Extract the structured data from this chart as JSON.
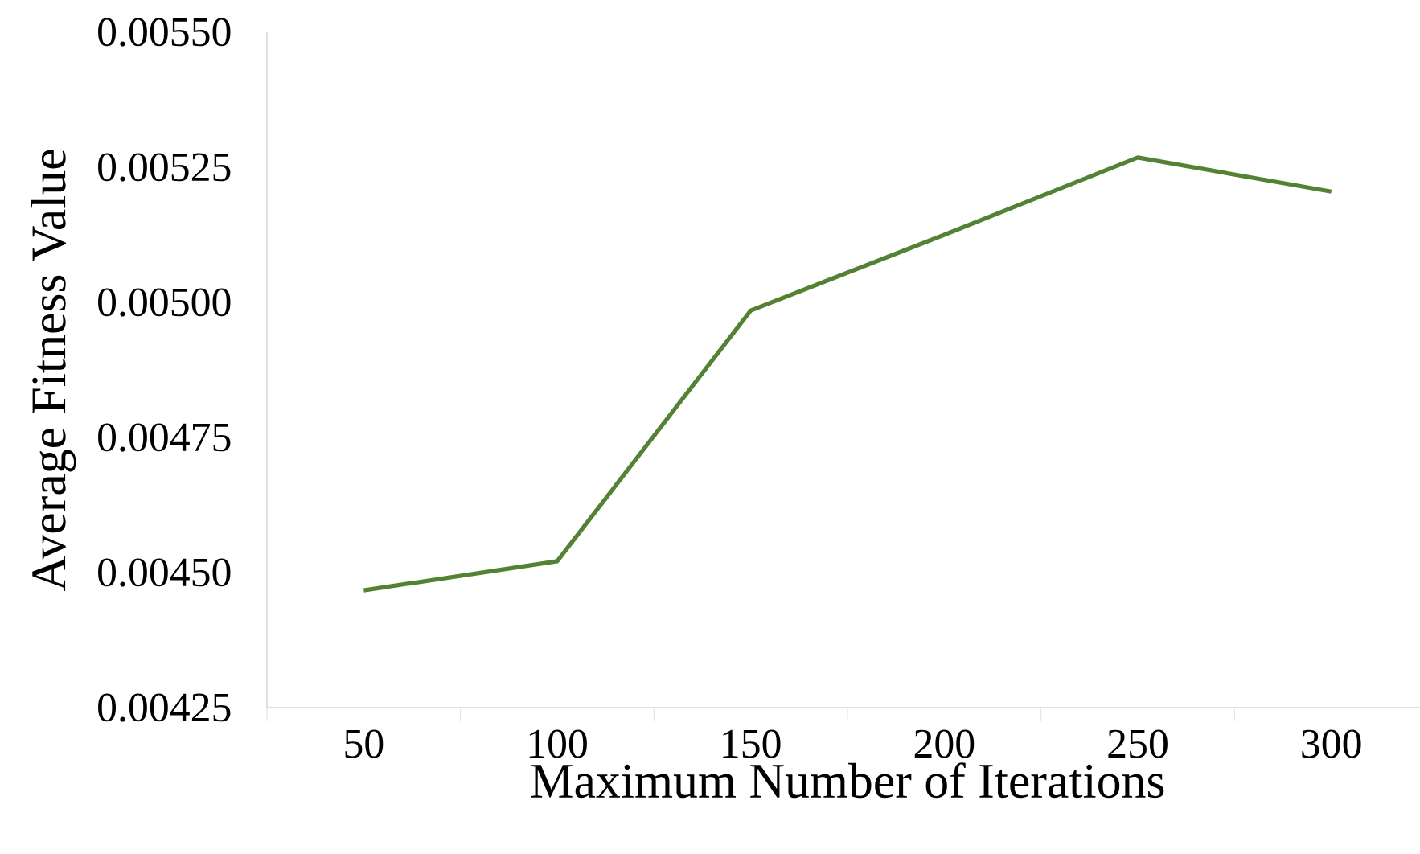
{
  "chart_data": {
    "type": "line",
    "xlabel": "Maximum Number of Iterations",
    "ylabel": "Average Fitness Value",
    "categories": [
      "50",
      "100",
      "150",
      "200",
      "250",
      "300"
    ],
    "values": [
      0.004467,
      0.004521,
      0.004985,
      0.005125,
      0.005268,
      0.005205
    ],
    "color": "#548235",
    "ylim": [
      0.00425,
      0.0055
    ],
    "yticks": [
      {
        "value": 0.00425,
        "label": "0.00425"
      },
      {
        "value": 0.0045,
        "label": "0.00450"
      },
      {
        "value": 0.00475,
        "label": "0.00475"
      },
      {
        "value": 0.005,
        "label": "0.00500"
      },
      {
        "value": 0.00525,
        "label": "0.00525"
      },
      {
        "value": 0.0055,
        "label": "0.00550"
      }
    ],
    "grid": false,
    "marker": "none",
    "line_style": "solid"
  }
}
